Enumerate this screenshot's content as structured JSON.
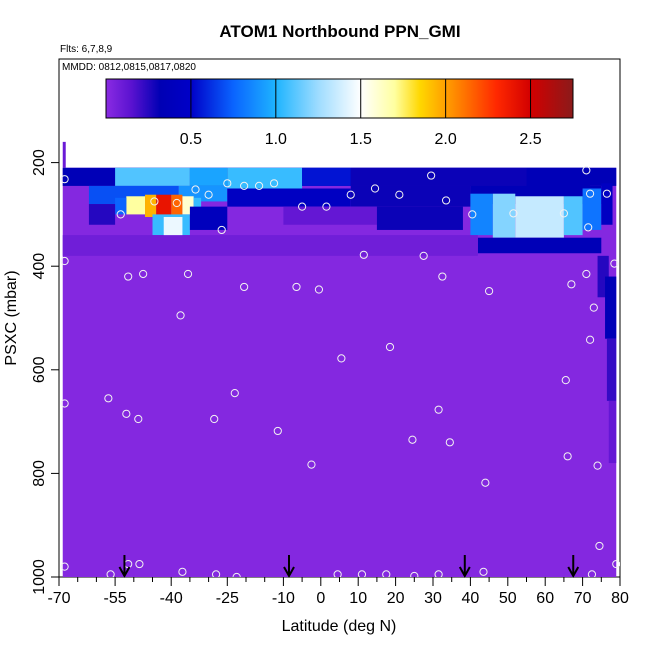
{
  "chart_data": {
    "type": "heatmap",
    "title": "ATOM1 Northbound PPN_GMI",
    "annotations": [
      "Flts: 6,7,8,9",
      "MMDD: 0812,0815,0817,0820"
    ],
    "xlabel": "Latitude (deg N)",
    "ylabel": "PSXC (mbar)",
    "xlim": [
      -70,
      80
    ],
    "ylim": [
      1000,
      0
    ],
    "x_ticks_major": [
      -70,
      -55,
      -40,
      -25,
      -10,
      0,
      10,
      20,
      30,
      40,
      50,
      60,
      70,
      80
    ],
    "x_ticks_minor": [
      -65,
      -60,
      -50,
      -45,
      -35,
      -30,
      -20,
      -15,
      -5,
      5,
      15,
      25,
      35,
      45,
      55,
      65,
      75
    ],
    "y_ticks": [
      200,
      400,
      600,
      800,
      1000
    ],
    "colorbar": {
      "range": [
        0,
        2.75
      ],
      "ticks": [
        0.5,
        1.0,
        1.5,
        2.0,
        2.5
      ],
      "tick_labels": [
        "0.5",
        "1.0",
        "1.5",
        "2.0",
        "2.5"
      ],
      "stops": [
        {
          "v": 0.0,
          "c": "#8a2be2"
        },
        {
          "v": 0.15,
          "c": "#5a12d0"
        },
        {
          "v": 0.32,
          "c": "#0000b4"
        },
        {
          "v": 0.5,
          "c": "#0000c8"
        },
        {
          "v": 0.75,
          "c": "#0a64ff"
        },
        {
          "v": 1.0,
          "c": "#1eb4ff"
        },
        {
          "v": 1.25,
          "c": "#9edcff"
        },
        {
          "v": 1.5,
          "c": "#ffffff"
        },
        {
          "v": 1.7,
          "c": "#ffffa0"
        },
        {
          "v": 1.85,
          "c": "#ffd700"
        },
        {
          "v": 2.05,
          "c": "#ff8c00"
        },
        {
          "v": 2.3,
          "c": "#ff2800"
        },
        {
          "v": 2.5,
          "c": "#d20000"
        },
        {
          "v": 2.75,
          "c": "#8b1a1a"
        }
      ]
    },
    "background_value": 0.02,
    "background_lat_range": [
      -69,
      79
    ],
    "background_p_range": [
      210,
      1000
    ],
    "cells": [
      {
        "lat": [
          -69,
          -68.2
        ],
        "p": [
          160,
          210
        ],
        "v": 0.1
      },
      {
        "lat": [
          -69,
          79
        ],
        "p": [
          210,
          245
        ],
        "v": 0.35
      },
      {
        "lat": [
          -55,
          -35
        ],
        "p": [
          210,
          245
        ],
        "v": 1.1
      },
      {
        "lat": [
          -35,
          -25
        ],
        "p": [
          210,
          245
        ],
        "v": 0.95
      },
      {
        "lat": [
          -25,
          -5
        ],
        "p": [
          210,
          250
        ],
        "v": 1.05
      },
      {
        "lat": [
          -5,
          8
        ],
        "p": [
          210,
          245
        ],
        "v": 0.55
      },
      {
        "lat": [
          8,
          55
        ],
        "p": [
          210,
          245
        ],
        "v": 0.3
      },
      {
        "lat": [
          55,
          72
        ],
        "p": [
          210,
          250
        ],
        "v": 0.35
      },
      {
        "lat": [
          -62,
          -38
        ],
        "p": [
          245,
          280
        ],
        "v": 0.7
      },
      {
        "lat": [
          -38,
          -25
        ],
        "p": [
          245,
          275
        ],
        "v": 0.9
      },
      {
        "lat": [
          -25,
          8
        ],
        "p": [
          250,
          285
        ],
        "v": 0.45
      },
      {
        "lat": [
          8,
          40
        ],
        "p": [
          245,
          285
        ],
        "v": 0.3
      },
      {
        "lat": [
          40,
          75
        ],
        "p": [
          245,
          280
        ],
        "v": 0.35
      },
      {
        "lat": [
          -52,
          -47
        ],
        "p": [
          265,
          300
        ],
        "v": 1.7
      },
      {
        "lat": [
          -47,
          -44
        ],
        "p": [
          262,
          305
        ],
        "v": 1.95
      },
      {
        "lat": [
          -44,
          -40
        ],
        "p": [
          262,
          305
        ],
        "v": 2.4
      },
      {
        "lat": [
          -40,
          -37
        ],
        "p": [
          262,
          305
        ],
        "v": 2.15
      },
      {
        "lat": [
          -37,
          -34
        ],
        "p": [
          265,
          300
        ],
        "v": 1.6
      },
      {
        "lat": [
          -34,
          -32
        ],
        "p": [
          268,
          300
        ],
        "v": 1.05
      },
      {
        "lat": [
          -55,
          -52
        ],
        "p": [
          268,
          300
        ],
        "v": 0.75
      },
      {
        "lat": [
          -62,
          -55
        ],
        "p": [
          280,
          320
        ],
        "v": 0.25
      },
      {
        "lat": [
          -45,
          -35
        ],
        "p": [
          300,
          340
        ],
        "v": 1.05
      },
      {
        "lat": [
          -42,
          -37
        ],
        "p": [
          305,
          345
        ],
        "v": 1.45
      },
      {
        "lat": [
          -35,
          -25
        ],
        "p": [
          285,
          330
        ],
        "v": 0.4
      },
      {
        "lat": [
          -10,
          15
        ],
        "p": [
          285,
          320
        ],
        "v": 0.12
      },
      {
        "lat": [
          15,
          38
        ],
        "p": [
          285,
          330
        ],
        "v": 0.3
      },
      {
        "lat": [
          40,
          46
        ],
        "p": [
          260,
          340
        ],
        "v": 0.85
      },
      {
        "lat": [
          46,
          52
        ],
        "p": [
          260,
          345
        ],
        "v": 1.2
      },
      {
        "lat": [
          52,
          65
        ],
        "p": [
          265,
          345
        ],
        "v": 1.35
      },
      {
        "lat": [
          65,
          70
        ],
        "p": [
          265,
          340
        ],
        "v": 1.1
      },
      {
        "lat": [
          70,
          75
        ],
        "p": [
          250,
          330
        ],
        "v": 0.8
      },
      {
        "lat": [
          75,
          78
        ],
        "p": [
          240,
          320
        ],
        "v": 0.45
      },
      {
        "lat": [
          42,
          75
        ],
        "p": [
          345,
          375
        ],
        "v": 0.35
      },
      {
        "lat": [
          -69,
          42
        ],
        "p": [
          340,
          380
        ],
        "v": 0.08
      },
      {
        "lat": [
          74,
          77
        ],
        "p": [
          380,
          460
        ],
        "v": 0.25
      },
      {
        "lat": [
          76,
          79
        ],
        "p": [
          420,
          540
        ],
        "v": 0.35
      },
      {
        "lat": [
          76.5,
          79
        ],
        "p": [
          540,
          660
        ],
        "v": 0.22
      },
      {
        "lat": [
          77,
          79
        ],
        "p": [
          660,
          780
        ],
        "v": 0.12
      }
    ],
    "points": [
      {
        "lat": -68.5,
        "p": 232
      },
      {
        "lat": -68.5,
        "p": 390
      },
      {
        "lat": -68.5,
        "p": 665
      },
      {
        "lat": -68.5,
        "p": 980
      },
      {
        "lat": -56.8,
        "p": 655
      },
      {
        "lat": -56.2,
        "p": 995
      },
      {
        "lat": -53.5,
        "p": 300
      },
      {
        "lat": -52,
        "p": 685
      },
      {
        "lat": -51.5,
        "p": 420
      },
      {
        "lat": -51.5,
        "p": 975
      },
      {
        "lat": -48.8,
        "p": 695
      },
      {
        "lat": -48.5,
        "p": 975
      },
      {
        "lat": -47.5,
        "p": 415
      },
      {
        "lat": -44.5,
        "p": 275
      },
      {
        "lat": -38.5,
        "p": 278
      },
      {
        "lat": -37.5,
        "p": 495
      },
      {
        "lat": -37,
        "p": 990
      },
      {
        "lat": -35.5,
        "p": 415
      },
      {
        "lat": -33.5,
        "p": 252
      },
      {
        "lat": -30,
        "p": 262
      },
      {
        "lat": -28.5,
        "p": 695
      },
      {
        "lat": -28,
        "p": 995
      },
      {
        "lat": -26.5,
        "p": 330
      },
      {
        "lat": -25,
        "p": 240
      },
      {
        "lat": -23,
        "p": 645
      },
      {
        "lat": -22.5,
        "p": 1000
      },
      {
        "lat": -20.5,
        "p": 245
      },
      {
        "lat": -20.5,
        "p": 440
      },
      {
        "lat": -16.5,
        "p": 245
      },
      {
        "lat": -12.5,
        "p": 240
      },
      {
        "lat": -11.5,
        "p": 718
      },
      {
        "lat": -6.5,
        "p": 440
      },
      {
        "lat": -5,
        "p": 285
      },
      {
        "lat": -2.5,
        "p": 783
      },
      {
        "lat": -0.5,
        "p": 445
      },
      {
        "lat": 1.5,
        "p": 285
      },
      {
        "lat": 4.5,
        "p": 995
      },
      {
        "lat": 5.5,
        "p": 578
      },
      {
        "lat": 8,
        "p": 262
      },
      {
        "lat": 11,
        "p": 995
      },
      {
        "lat": 11.5,
        "p": 378
      },
      {
        "lat": 14.5,
        "p": 250
      },
      {
        "lat": 17.5,
        "p": 995
      },
      {
        "lat": 18.5,
        "p": 556
      },
      {
        "lat": 21,
        "p": 262
      },
      {
        "lat": 24.5,
        "p": 735
      },
      {
        "lat": 25,
        "p": 998
      },
      {
        "lat": 27.5,
        "p": 380
      },
      {
        "lat": 29.5,
        "p": 225
      },
      {
        "lat": 31.5,
        "p": 995
      },
      {
        "lat": 31.5,
        "p": 677
      },
      {
        "lat": 32.5,
        "p": 420
      },
      {
        "lat": 33.5,
        "p": 273
      },
      {
        "lat": 34.5,
        "p": 740
      },
      {
        "lat": 40.5,
        "p": 300
      },
      {
        "lat": 43.5,
        "p": 990
      },
      {
        "lat": 44,
        "p": 818
      },
      {
        "lat": 45,
        "p": 448
      },
      {
        "lat": 51.5,
        "p": 298
      },
      {
        "lat": 65,
        "p": 298
      },
      {
        "lat": 65.5,
        "p": 620
      },
      {
        "lat": 66,
        "p": 767
      },
      {
        "lat": 67,
        "p": 435
      },
      {
        "lat": 71,
        "p": 215
      },
      {
        "lat": 71,
        "p": 415
      },
      {
        "lat": 71.5,
        "p": 325
      },
      {
        "lat": 72,
        "p": 260
      },
      {
        "lat": 72,
        "p": 542
      },
      {
        "lat": 72.5,
        "p": 995
      },
      {
        "lat": 73,
        "p": 480
      },
      {
        "lat": 74,
        "p": 785
      },
      {
        "lat": 74.5,
        "p": 940
      },
      {
        "lat": 76.5,
        "p": 260
      },
      {
        "lat": 78.5,
        "p": 395
      },
      {
        "lat": 79,
        "p": 975
      }
    ],
    "arrows_lat": [
      -52.5,
      -8.5,
      38.5,
      67.5
    ]
  }
}
